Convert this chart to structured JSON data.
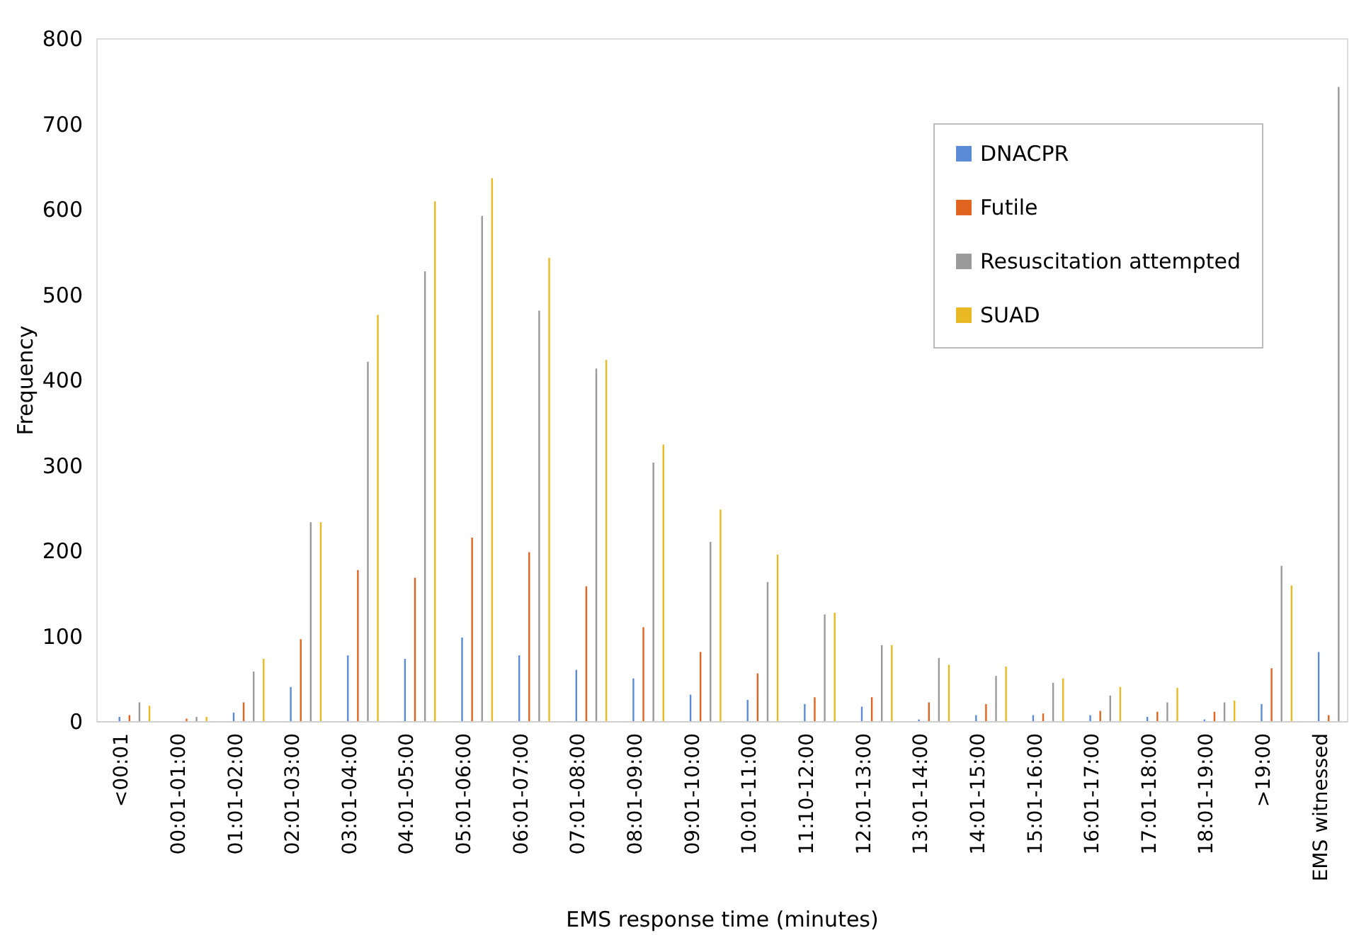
{
  "chart_data": {
    "type": "bar",
    "xlabel": "EMS response time (minutes)",
    "ylabel": "Frequency",
    "categories": [
      "<00:01",
      "00:01-01:00",
      "01:01-02:00",
      "02:01-03:00",
      "03:01-04:00",
      "04:01-05:00",
      "05:01-06:00",
      "06:01-07:00",
      "07:01-08:00",
      "08:01-09:00",
      "09:01-10:00",
      "10:01-11:00",
      "11:10-12:00",
      "12:01-13:00",
      "13:01-14:00",
      "14:01-15:00",
      "15:01-16:00",
      "16:01-17:00",
      "17:01-18:00",
      "18:01-19:00",
      ">19:00",
      "EMS witnessed"
    ],
    "series": [
      {
        "name": "DNACPR",
        "color": "#5b8ad6",
        "values": [
          5,
          0,
          10,
          40,
          77,
          73,
          98,
          77,
          60,
          50,
          31,
          25,
          20,
          17,
          2,
          7,
          7,
          7,
          5,
          2,
          20,
          81
        ]
      },
      {
        "name": "Futile",
        "color": "#e0641f",
        "values": [
          7,
          3,
          22,
          96,
          177,
          168,
          215,
          198,
          158,
          110,
          81,
          56,
          28,
          28,
          22,
          20,
          9,
          12,
          11,
          11,
          62,
          7
        ]
      },
      {
        "name": "Resuscitation attempted",
        "color": "#9a9a9a",
        "values": [
          22,
          5,
          58,
          233,
          421,
          527,
          592,
          481,
          413,
          303,
          210,
          163,
          125,
          89,
          74,
          53,
          45,
          30,
          22,
          22,
          182,
          743
        ]
      },
      {
        "name": "SUAD",
        "color": "#e8b923",
        "values": [
          18,
          5,
          73,
          233,
          476,
          609,
          636,
          543,
          423,
          324,
          248,
          195,
          127,
          89,
          66,
          64,
          50,
          40,
          39,
          24,
          159,
          null
        ]
      }
    ],
    "ylim": [
      0,
      800
    ],
    "yticks": [
      0,
      100,
      200,
      300,
      400,
      500,
      600,
      700,
      800
    ],
    "grid": false,
    "legend": "top right"
  }
}
